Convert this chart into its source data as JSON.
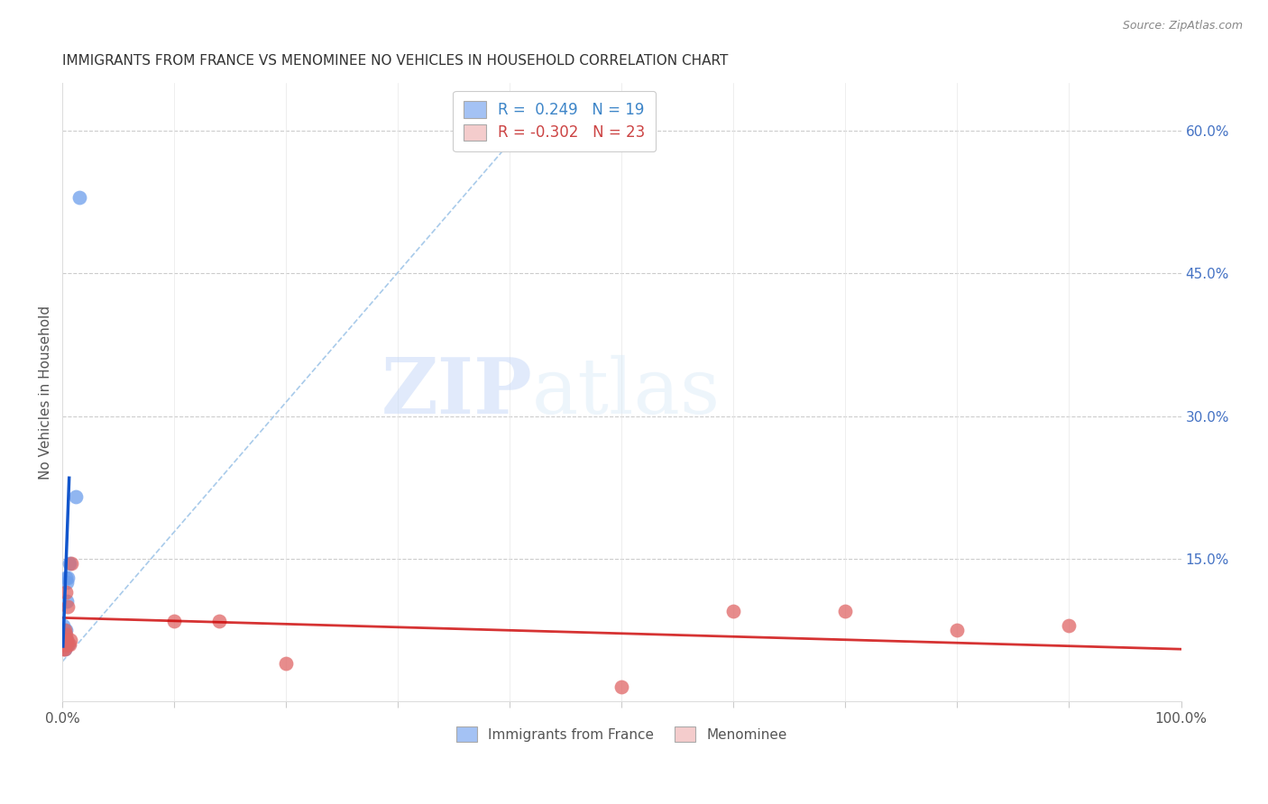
{
  "title": "IMMIGRANTS FROM FRANCE VS MENOMINEE NO VEHICLES IN HOUSEHOLD CORRELATION CHART",
  "source": "Source: ZipAtlas.com",
  "ylabel": "No Vehicles in Household",
  "xlim": [
    0,
    1.0
  ],
  "ylim": [
    0,
    0.65
  ],
  "legend_r1": "R =  0.249   N = 19",
  "legend_r2": "R = -0.302   N = 23",
  "blue_color": "#a4c2f4",
  "pink_color": "#f4cccc",
  "blue_dot_color": "#6d9eeb",
  "pink_dot_color": "#e06666",
  "blue_line_color": "#1155cc",
  "pink_line_color": "#cc0000",
  "dashed_line_color": "#9fc5e8",
  "france_x": [
    0.001,
    0.001,
    0.001,
    0.001,
    0.002,
    0.002,
    0.002,
    0.003,
    0.003,
    0.003,
    0.003,
    0.004,
    0.004,
    0.004,
    0.005,
    0.005,
    0.006,
    0.012,
    0.015
  ],
  "france_y": [
    0.06,
    0.07,
    0.075,
    0.08,
    0.055,
    0.065,
    0.07,
    0.06,
    0.065,
    0.075,
    0.13,
    0.065,
    0.105,
    0.125,
    0.06,
    0.13,
    0.145,
    0.215,
    0.53
  ],
  "menominee_x": [
    0.001,
    0.001,
    0.001,
    0.002,
    0.002,
    0.002,
    0.002,
    0.003,
    0.003,
    0.004,
    0.005,
    0.005,
    0.006,
    0.007,
    0.008,
    0.1,
    0.14,
    0.2,
    0.5,
    0.6,
    0.7,
    0.8,
    0.9
  ],
  "menominee_y": [
    0.055,
    0.06,
    0.065,
    0.055,
    0.06,
    0.065,
    0.075,
    0.07,
    0.115,
    0.065,
    0.06,
    0.1,
    0.06,
    0.065,
    0.145,
    0.085,
    0.085,
    0.04,
    0.015,
    0.095,
    0.095,
    0.075,
    0.08
  ],
  "blue_line_x": [
    0.0005,
    0.006
  ],
  "blue_line_y": [
    0.058,
    0.235
  ],
  "dash_line_x": [
    0.0,
    0.42
  ],
  "dash_line_y": [
    0.042,
    0.615
  ],
  "pink_line_x": [
    0.0,
    1.0
  ],
  "pink_line_y": [
    0.088,
    0.055
  ]
}
